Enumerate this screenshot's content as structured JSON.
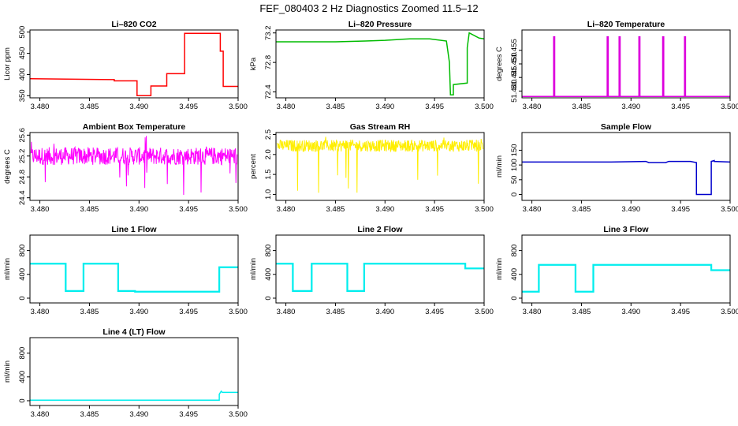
{
  "title": "FEF_080403  2 Hz Diagnostics Zoomed 11.5–12",
  "chart_data": [
    {
      "type": "line",
      "title": "Li–820 CO2",
      "ylabel": "Licor ppm",
      "color": "#ff0000",
      "xlim": [
        3.479,
        3.5
      ],
      "ylim": [
        345,
        505
      ],
      "xticks": [
        "3.480",
        "3.485",
        "3.490",
        "3.495",
        "3.500"
      ],
      "yticks": [
        "350",
        "400",
        "450",
        "500"
      ],
      "series": [
        {
          "x": [
            3.479,
            3.4875,
            3.4875,
            3.4898,
            3.4898,
            3.4912,
            3.4912,
            3.4928,
            3.4928,
            3.4946,
            3.4946,
            3.4982,
            3.4982,
            3.4985,
            3.4985,
            3.5
          ],
          "y": [
            390,
            388,
            385,
            385,
            350,
            350,
            373,
            373,
            402,
            402,
            497,
            497,
            455,
            455,
            372,
            372
          ]
        }
      ]
    },
    {
      "type": "line",
      "title": "Li–820 Pressure",
      "ylabel": "kPa",
      "color": "#00bb00",
      "xlim": [
        3.479,
        3.5
      ],
      "ylim": [
        72.32,
        73.24
      ],
      "xticks": [
        "3.480",
        "3.485",
        "3.490",
        "3.495",
        "3.500"
      ],
      "yticks": [
        "72.4",
        "72.8",
        "73.2"
      ],
      "series": [
        {
          "x": [
            3.479,
            3.485,
            3.488,
            3.49,
            3.4925,
            3.4945,
            3.4962,
            3.4965,
            3.4966,
            3.4969,
            3.4969,
            3.4983,
            3.4983,
            3.4985,
            3.4995,
            3.5
          ],
          "y": [
            73.08,
            73.08,
            73.09,
            73.1,
            73.12,
            73.12,
            73.09,
            72.8,
            72.36,
            72.36,
            72.5,
            72.52,
            73.0,
            73.2,
            73.13,
            73.12
          ]
        }
      ]
    },
    {
      "type": "line",
      "title": "Li–820 Temperature",
      "ylabel": "degrees C",
      "color": "#dd00dd",
      "xlim": [
        3.479,
        3.5
      ],
      "ylim": [
        51.4375,
        51.4625
      ],
      "xticks": [
        "3.480",
        "3.485",
        "3.490",
        "3.495",
        "3.500"
      ],
      "yticks": [
        "51.440",
        "51.445",
        "51.450",
        "51.455"
      ],
      "series": [
        {
          "x": [
            3.479,
            3.4822,
            3.4822,
            3.4823,
            3.4823,
            3.4876,
            3.4876,
            3.4877,
            3.4877,
            3.4888,
            3.4888,
            3.4889,
            3.4889,
            3.4908,
            3.4908,
            3.4909,
            3.4909,
            3.4932,
            3.4932,
            3.4933,
            3.4933,
            3.4954,
            3.4954,
            3.4955,
            3.4955,
            3.5
          ],
          "y": [
            51.438,
            51.438,
            51.46,
            51.46,
            51.438,
            51.438,
            51.46,
            51.46,
            51.438,
            51.438,
            51.46,
            51.46,
            51.438,
            51.438,
            51.46,
            51.46,
            51.438,
            51.438,
            51.46,
            51.46,
            51.438,
            51.438,
            51.46,
            51.46,
            51.438,
            51.438
          ]
        }
      ]
    },
    {
      "type": "line",
      "title": "Ambient Box Temperature",
      "ylabel": "degrees C",
      "color": "#ff00ff",
      "noise": {
        "base": 25.2,
        "amp": 0.17,
        "spike_lo": 24.45,
        "spike_hi": 25.6,
        "n": 520
      },
      "xlim": [
        3.479,
        3.5
      ],
      "ylim": [
        24.35,
        25.65
      ],
      "xticks": [
        "3.480",
        "3.485",
        "3.490",
        "3.495",
        "3.500"
      ],
      "yticks": [
        "24.4",
        "24.8",
        "25.2",
        "25.6"
      ],
      "series": []
    },
    {
      "type": "line",
      "title": "Gas Stream RH",
      "ylabel": "percent",
      "color": "#ffee00",
      "noise": {
        "base": 2.22,
        "amp": 0.15,
        "spike_lo": 0.9,
        "spike_hi": 2.45,
        "n": 520
      },
      "xlim": [
        3.479,
        3.5
      ],
      "ylim": [
        0.85,
        2.55
      ],
      "xticks": [
        "3.480",
        "3.485",
        "3.490",
        "3.495",
        "3.500"
      ],
      "yticks": [
        "1.0",
        "1.5",
        "2.0",
        "2.5"
      ],
      "series": []
    },
    {
      "type": "line",
      "title": "Sample Flow",
      "ylabel": "ml/min",
      "color": "#0000cc",
      "xlim": [
        3.479,
        3.5
      ],
      "ylim": [
        -20,
        210
      ],
      "xticks": [
        "3.480",
        "3.485",
        "3.490",
        "3.495",
        "3.500"
      ],
      "yticks": [
        "0",
        "50",
        "100",
        "150"
      ],
      "series": [
        {
          "x": [
            3.479,
            3.488,
            3.4915,
            3.4918,
            3.4935,
            3.4938,
            3.496,
            3.4966,
            3.4966,
            3.4981,
            3.4981,
            3.4984,
            3.4984,
            3.5
          ],
          "y": [
            110,
            110,
            112,
            108,
            108,
            112,
            112,
            108,
            0,
            0,
            112,
            115,
            112,
            110
          ]
        }
      ]
    },
    {
      "type": "line",
      "title": "Line 1 Flow",
      "ylabel": "ml/min",
      "color": "#00eeee",
      "band": 30,
      "xlim": [
        3.479,
        3.5
      ],
      "ylim": [
        -80,
        1060
      ],
      "xticks": [
        "3.480",
        "3.485",
        "3.490",
        "3.495",
        "3.500"
      ],
      "yticks": [
        "0",
        "400",
        "800"
      ],
      "series": [
        {
          "x": [
            3.479,
            3.4826,
            3.4826,
            3.4844,
            3.4844,
            3.4879,
            3.4879,
            3.4896,
            3.4896,
            3.4981,
            3.4981,
            3.5
          ],
          "y": [
            580,
            580,
            120,
            120,
            580,
            580,
            120,
            120,
            110,
            110,
            520,
            520
          ]
        }
      ]
    },
    {
      "type": "line",
      "title": "Line 2 Flow",
      "ylabel": "ml/min",
      "color": "#00eeee",
      "band": 30,
      "xlim": [
        3.479,
        3.5
      ],
      "ylim": [
        -80,
        1060
      ],
      "xticks": [
        "3.480",
        "3.485",
        "3.490",
        "3.495",
        "3.500"
      ],
      "yticks": [
        "0",
        "400",
        "800"
      ],
      "series": [
        {
          "x": [
            3.479,
            3.4807,
            3.4807,
            3.4826,
            3.4826,
            3.4862,
            3.4862,
            3.4879,
            3.4879,
            3.4981,
            3.4981,
            3.5
          ],
          "y": [
            580,
            580,
            120,
            120,
            580,
            580,
            120,
            120,
            580,
            580,
            500,
            500
          ]
        }
      ]
    },
    {
      "type": "line",
      "title": "Line 3 Flow",
      "ylabel": "ml/min",
      "color": "#00eeee",
      "band": 30,
      "xlim": [
        3.479,
        3.5
      ],
      "ylim": [
        -80,
        1060
      ],
      "xticks": [
        "3.480",
        "3.485",
        "3.490",
        "3.495",
        "3.500"
      ],
      "yticks": [
        "0",
        "400",
        "800"
      ],
      "series": [
        {
          "x": [
            3.479,
            3.4807,
            3.4807,
            3.4844,
            3.4844,
            3.4862,
            3.4862,
            3.4981,
            3.4981,
            3.5
          ],
          "y": [
            110,
            110,
            560,
            560,
            110,
            110,
            560,
            560,
            470,
            470
          ]
        }
      ]
    },
    {
      "type": "line",
      "title": "Line 4 (LT) Flow",
      "ylabel": "ml/min",
      "color": "#00eeee",
      "xlim": [
        3.479,
        3.5
      ],
      "ylim": [
        -80,
        1060
      ],
      "xticks": [
        "3.480",
        "3.485",
        "3.490",
        "3.495",
        "3.500"
      ],
      "yticks": [
        "0",
        "400",
        "800"
      ],
      "series": [
        {
          "x": [
            3.479,
            3.4981,
            3.4981,
            3.4983,
            3.4984,
            3.5
          ],
          "y": [
            10,
            10,
            110,
            160,
            140,
            140
          ]
        }
      ]
    }
  ]
}
